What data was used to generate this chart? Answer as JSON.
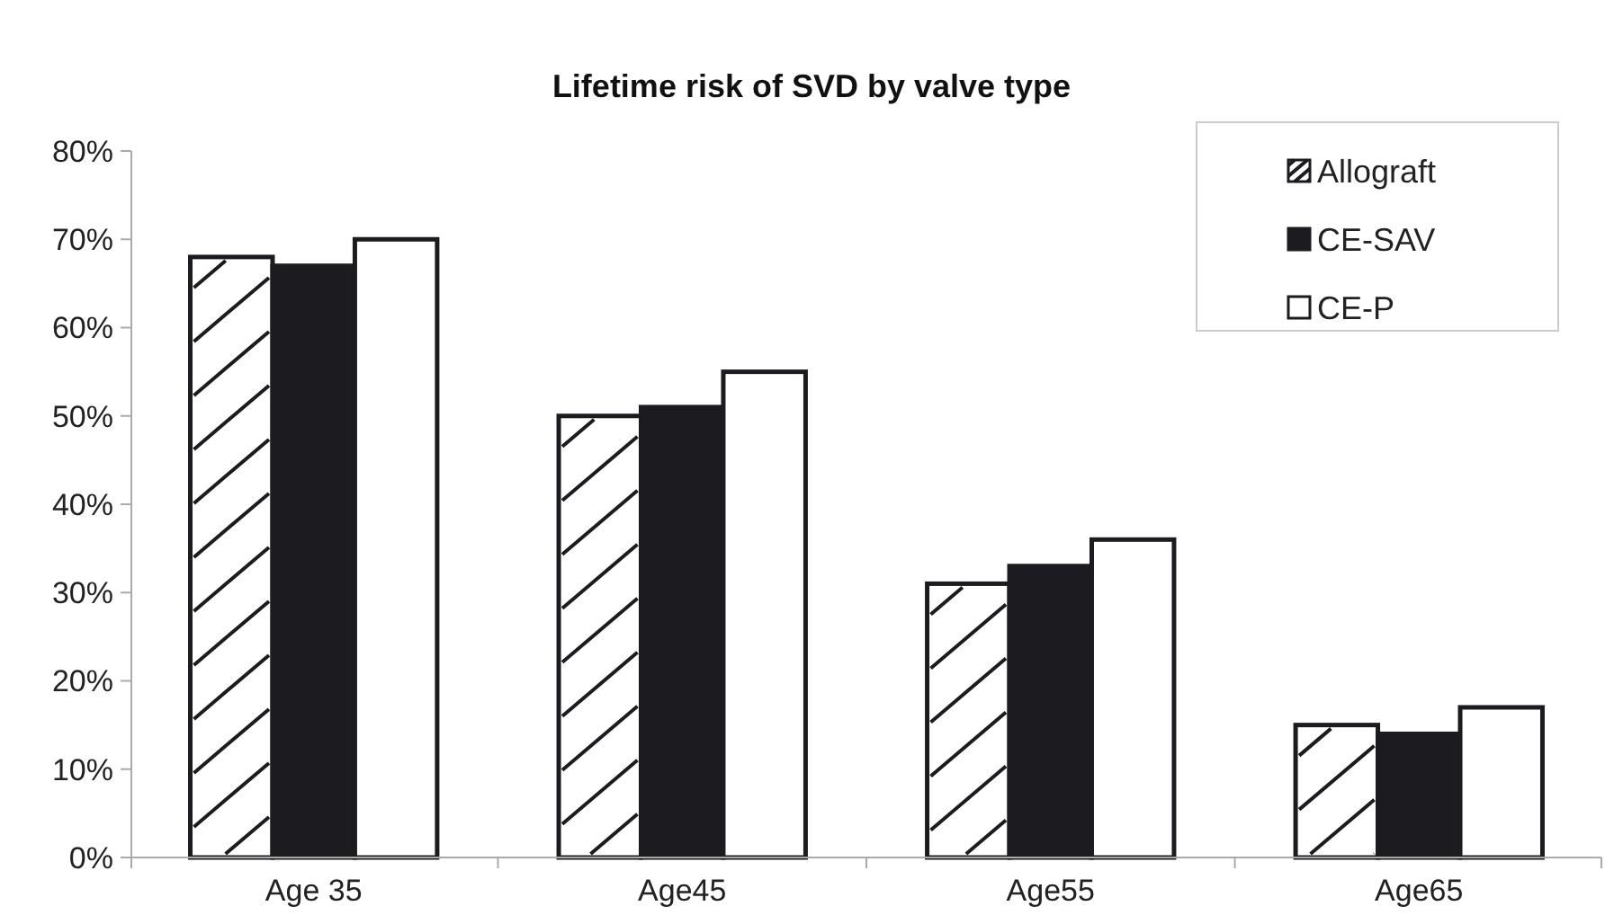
{
  "chart_data": {
    "type": "bar",
    "title": "Lifetime risk of SVD by valve type",
    "categories": [
      "Age 35",
      "Age45",
      "Age55",
      "Age65"
    ],
    "series": [
      {
        "name": "Allograft",
        "color": "#ffffff",
        "values": [
          68,
          50,
          31,
          15
        ]
      },
      {
        "name": "CE-SAV",
        "color": "#1c1b1f",
        "values": [
          67,
          51,
          33,
          14
        ]
      },
      {
        "name": "CE-P",
        "color": "#ffffff",
        "values": [
          70,
          55,
          36,
          17
        ]
      }
    ],
    "ylim": [
      0,
      80
    ],
    "yticks": [
      {
        "value": 0,
        "label": "0%"
      },
      {
        "value": 10,
        "label": "10%"
      },
      {
        "value": 20,
        "label": "20%"
      },
      {
        "value": 30,
        "label": "30%"
      },
      {
        "value": 40,
        "label": "40%"
      },
      {
        "value": 50,
        "label": "50%"
      },
      {
        "value": 60,
        "label": "60%"
      },
      {
        "value": 70,
        "label": "70%"
      },
      {
        "value": 80,
        "label": "80%"
      }
    ],
    "grid": false,
    "legend": "top right"
  }
}
